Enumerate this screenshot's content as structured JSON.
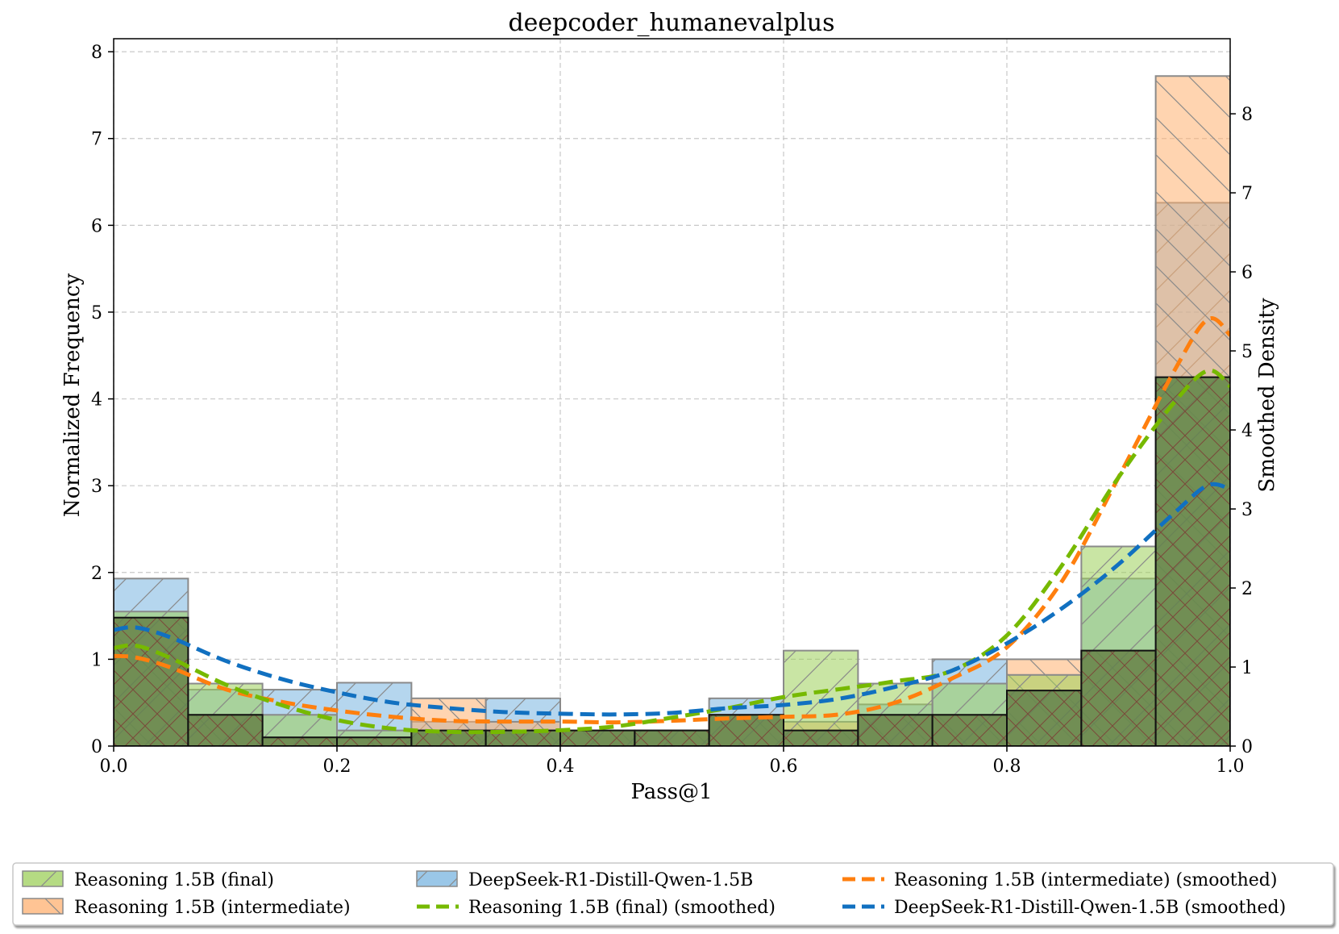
{
  "chart_data": {
    "type": "bar",
    "title": "deepcoder_humanevalplus",
    "xlabel": "Pass@1",
    "ylabel": "Normalized Frequency",
    "y2label": "Smoothed Density",
    "xlim": [
      0.0,
      1.0
    ],
    "ylim": [
      0,
      8.15
    ],
    "y2lim": [
      0,
      8.95
    ],
    "xticks": [
      "0.0",
      "0.2",
      "0.4",
      "0.6",
      "0.8",
      "1.0"
    ],
    "yticks": [
      "0",
      "1",
      "2",
      "3",
      "4",
      "5",
      "6",
      "7",
      "8"
    ],
    "y2ticks": [
      "0",
      "1",
      "2",
      "3",
      "4",
      "5",
      "6",
      "7",
      "8"
    ],
    "grid": true,
    "legend_position": "bottom",
    "bin_edges": [
      0.0,
      0.0667,
      0.1333,
      0.2,
      0.2667,
      0.3333,
      0.4,
      0.4667,
      0.5333,
      0.6,
      0.6667,
      0.7333,
      0.8,
      0.8667,
      0.9333,
      1.0
    ],
    "series": [
      {
        "name": "Reasoning 1.5B (final)",
        "kind": "hist",
        "color": "#9ccf5a",
        "values": [
          1.55,
          0.72,
          0.36,
          0.18,
          0.18,
          0.18,
          0.18,
          0.18,
          0.36,
          1.1,
          0.72,
          0.72,
          0.82,
          2.3,
          4.25
        ]
      },
      {
        "name": "Reasoning 1.5B (intermediate)",
        "kind": "hist",
        "color": "#ffb070",
        "values": [
          1.48,
          0.36,
          0.1,
          0.1,
          0.55,
          0.28,
          0.18,
          0.18,
          0.36,
          0.28,
          0.36,
          0.36,
          1.0,
          1.1,
          7.72
        ]
      },
      {
        "name": "DeepSeek-R1-Distill-Qwen-1.5B",
        "kind": "hist",
        "color": "#78b4e0",
        "values": [
          1.93,
          0.65,
          0.65,
          0.73,
          0.28,
          0.55,
          0.18,
          0.18,
          0.55,
          0.18,
          0.48,
          1.0,
          0.64,
          1.93,
          6.26
        ]
      },
      {
        "name": "Reasoning 1.5B (intermediate) (smoothed)",
        "kind": "kde",
        "color": "#ff7f0e",
        "x": [
          0.0,
          0.02,
          0.05,
          0.1,
          0.15,
          0.2,
          0.25,
          0.3,
          0.35,
          0.4,
          0.45,
          0.5,
          0.55,
          0.6,
          0.65,
          0.7,
          0.75,
          0.8,
          0.85,
          0.9,
          0.95,
          0.98,
          1.0
        ],
        "y": [
          1.14,
          1.12,
          1.0,
          0.72,
          0.56,
          0.45,
          0.37,
          0.32,
          0.31,
          0.31,
          0.3,
          0.32,
          0.35,
          0.37,
          0.4,
          0.55,
          0.85,
          1.25,
          2.1,
          3.4,
          4.75,
          5.4,
          5.2
        ]
      },
      {
        "name": "Reasoning 1.5B (final) (smoothed)",
        "kind": "kde",
        "color": "#76b900",
        "x": [
          0.0,
          0.02,
          0.05,
          0.1,
          0.15,
          0.2,
          0.25,
          0.3,
          0.35,
          0.4,
          0.45,
          0.5,
          0.55,
          0.6,
          0.65,
          0.7,
          0.75,
          0.8,
          0.85,
          0.9,
          0.95,
          0.98,
          1.0
        ],
        "y": [
          1.24,
          1.27,
          1.12,
          0.78,
          0.52,
          0.33,
          0.22,
          0.18,
          0.18,
          0.2,
          0.25,
          0.36,
          0.48,
          0.62,
          0.72,
          0.82,
          0.95,
          1.4,
          2.3,
          3.4,
          4.35,
          4.75,
          4.55
        ]
      },
      {
        "name": "DeepSeek-R1-Distill-Qwen-1.5B (smoothed)",
        "kind": "kde",
        "color": "#1170c0",
        "x": [
          0.0,
          0.02,
          0.05,
          0.1,
          0.15,
          0.2,
          0.25,
          0.3,
          0.35,
          0.4,
          0.45,
          0.5,
          0.55,
          0.6,
          0.65,
          0.7,
          0.75,
          0.8,
          0.85,
          0.9,
          0.95,
          0.98,
          1.0
        ],
        "y": [
          1.47,
          1.5,
          1.38,
          1.08,
          0.85,
          0.68,
          0.55,
          0.48,
          0.43,
          0.41,
          0.4,
          0.42,
          0.48,
          0.52,
          0.6,
          0.75,
          0.95,
          1.3,
          1.75,
          2.3,
          2.95,
          3.3,
          3.25
        ]
      }
    ],
    "legend": [
      "Reasoning 1.5B (final)",
      "DeepSeek-R1-Distill-Qwen-1.5B",
      "Reasoning 1.5B (intermediate) (smoothed)",
      "Reasoning 1.5B (intermediate)",
      "Reasoning 1.5B (final) (smoothed)",
      "DeepSeek-R1-Distill-Qwen-1.5B (smoothed)"
    ]
  }
}
